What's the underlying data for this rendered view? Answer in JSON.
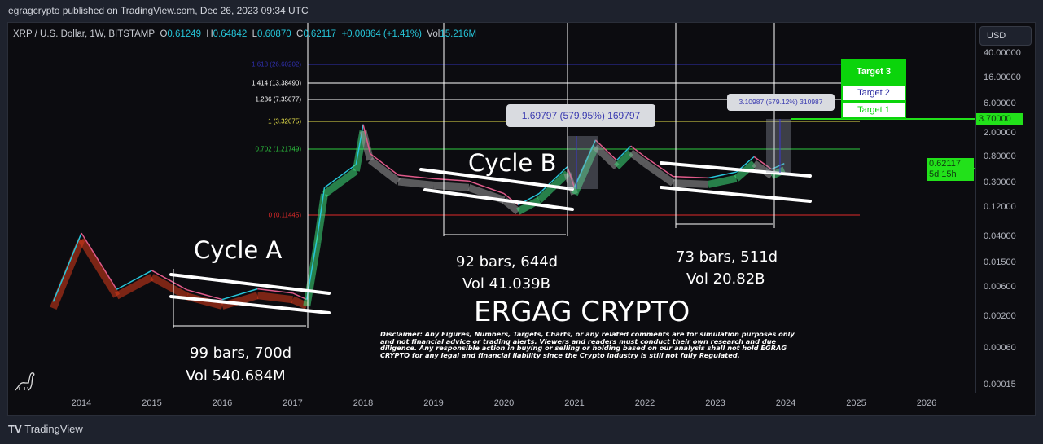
{
  "header": {
    "published": "egragcrypto published on TradingView.com, Dec 26, 2023 09:34 UTC"
  },
  "legend": {
    "symbol": "XRP / U.S. Dollar, 1W, BITSTAMP",
    "o_label": "O",
    "o": "0.61249",
    "h_label": "H",
    "h": "0.64842",
    "l_label": "L",
    "l": "0.60870",
    "c_label": "C",
    "c": "0.62117",
    "change": "+0.00864 (+1.41%)",
    "vol_label": "Vol",
    "vol": "15.216M"
  },
  "currency": "USD",
  "price_labels": {
    "target_price": "3.70000",
    "last_price": "0.62117",
    "countdown": "5d 15h"
  },
  "fib_levels": [
    {
      "label": "1.618 (26.60202)",
      "color": "#3030b0"
    },
    {
      "label": "1.414 (13.38490)",
      "color": "#ffffff"
    },
    {
      "label": "1.236 (7.35077)",
      "color": "#ffffff"
    },
    {
      "label": "1 (3.32075)",
      "color": "#e6e04a"
    },
    {
      "label": "0.702 (1.21749)",
      "color": "#2ecc40"
    },
    {
      "label": "0 (0.11445)",
      "color": "#e02a2a"
    }
  ],
  "annotations": {
    "cycle_a": "Cycle A",
    "cycle_b": "Cycle B",
    "a_bars": "99 bars, 700d",
    "a_vol": "Vol 540.684M",
    "b_bars": "92 bars, 644d",
    "b_vol": "Vol 41.039B",
    "c_bars": "73 bars, 511d",
    "c_vol": "Vol 20.82B",
    "watermark": "ERGAG CRYPTO",
    "measure_b": "1.69797 (579.95%) 169797",
    "measure_c": "3.10987 (579.12%) 310987",
    "targets": [
      "Target 3",
      "Target 2",
      "Target 1"
    ],
    "disclaimer": "Disclaimer: Any Figures, Numbers, Targets, Charts, or any related comments are for simulation purposes only and not financial advice or trading alerts. Viewers and readers must conduct their own research and due diligence. Any responsible action in buying or selling or holding based on our analysis shall not hold EGRAG CRYPTO for any legal and financial liability since the Crypto industry is still not fully Regulated."
  },
  "brand": "TradingView",
  "colors": {
    "accent_green": "#22e11a",
    "candle_up": "#26c6da",
    "fib_red": "#e02a2a"
  },
  "chart_data": {
    "type": "line",
    "yscale": "log",
    "ylim": [
      0.00015,
      40
    ],
    "y_ticks": [
      "40.00000",
      "16.00000",
      "6.00000",
      "2.00000",
      "0.80000",
      "0.30000",
      "0.12000",
      "0.04000",
      "0.01500",
      "0.00600",
      "0.00200",
      "0.00060",
      "0.00015"
    ],
    "x_ticks": [
      "2014",
      "2015",
      "2016",
      "2017",
      "2018",
      "2019",
      "2020",
      "2021",
      "2022",
      "2023",
      "2024",
      "2025",
      "2026"
    ],
    "grid": false,
    "series": [
      {
        "values": [
          [
            2013.6,
            0.0034
          ],
          [
            2014.0,
            0.045
          ],
          [
            2014.5,
            0.0054
          ],
          [
            2015.0,
            0.011
          ],
          [
            2015.5,
            0.0053
          ],
          [
            2016.0,
            0.0037
          ],
          [
            2016.5,
            0.0055
          ],
          [
            2017.0,
            0.0047
          ],
          [
            2017.2,
            0.0037
          ],
          [
            2017.35,
            0.04
          ],
          [
            2017.45,
            0.25
          ],
          [
            2017.9,
            0.6
          ],
          [
            2018.0,
            2.7
          ],
          [
            2018.1,
            0.9
          ],
          [
            2018.5,
            0.4
          ],
          [
            2019.0,
            0.35
          ],
          [
            2019.5,
            0.32
          ],
          [
            2020.0,
            0.2
          ],
          [
            2020.2,
            0.13
          ],
          [
            2020.5,
            0.2
          ],
          [
            2020.9,
            0.55
          ],
          [
            2021.0,
            0.25
          ],
          [
            2021.3,
            1.5
          ],
          [
            2021.6,
            0.7
          ],
          [
            2021.8,
            1.2
          ],
          [
            2022.0,
            0.8
          ],
          [
            2022.4,
            0.38
          ],
          [
            2022.9,
            0.36
          ],
          [
            2023.3,
            0.45
          ],
          [
            2023.55,
            0.8
          ],
          [
            2023.8,
            0.5
          ],
          [
            2023.98,
            0.62117
          ]
        ]
      }
    ]
  }
}
